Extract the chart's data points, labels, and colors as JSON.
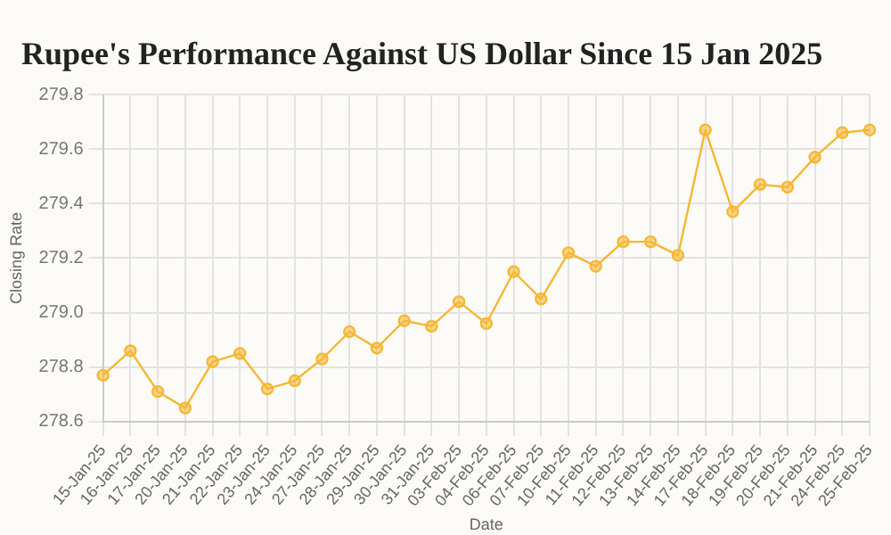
{
  "chart_data": {
    "type": "line",
    "title": "Rupee's Performance Against US Dollar Since 15 Jan 2025",
    "xlabel": "Date",
    "ylabel": "Closing Rate",
    "categories": [
      "15-Jan-25",
      "16-Jan-25",
      "17-Jan-25",
      "20-Jan-25",
      "21-Jan-25",
      "22-Jan-25",
      "23-Jan-25",
      "24-Jan-25",
      "27-Jan-25",
      "28-Jan-25",
      "29-Jan-25",
      "30-Jan-25",
      "31-Jan-25",
      "03-Feb-25",
      "04-Feb-25",
      "06-Feb-25",
      "07-Feb-25",
      "10-Feb-25",
      "11-Feb-25",
      "12-Feb-25",
      "13-Feb-25",
      "14-Feb-25",
      "17-Feb-25",
      "18-Feb-25",
      "19-Feb-25",
      "20-Feb-25",
      "21-Feb-25",
      "24-Feb-25",
      "25-Feb-25"
    ],
    "series": [
      {
        "color": "#f7b733",
        "values": [
          278.77,
          278.86,
          278.71,
          278.65,
          278.82,
          278.85,
          278.72,
          278.75,
          278.83,
          278.93,
          278.87,
          278.97,
          278.95,
          279.04,
          278.96,
          279.15,
          279.05,
          279.22,
          279.17,
          279.26,
          279.26,
          279.21,
          279.67,
          279.37,
          279.47,
          279.46,
          279.57,
          279.66,
          279.67
        ]
      }
    ],
    "ylim": [
      278.6,
      279.8
    ],
    "yticks": [
      278.6,
      278.8,
      {
        "value": 279,
        "label": "279.0"
      },
      279.2,
      279.4,
      279.6,
      279.8
    ],
    "grid": true,
    "legend": false,
    "marker": "circle",
    "line_style": "solid"
  }
}
